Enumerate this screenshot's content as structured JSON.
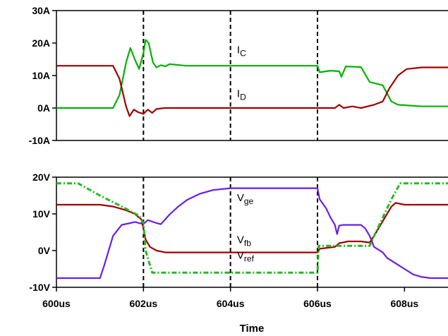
{
  "chart_data": [
    {
      "type": "line",
      "x_unit": "us",
      "xlim": [
        600,
        609
      ],
      "ylim": [
        -10,
        30
      ],
      "y_ticks": [
        "30A",
        "20A",
        "10A",
        "0A",
        "-10A"
      ],
      "y_tick_values": [
        30,
        20,
        10,
        0,
        -10
      ],
      "markers_x": [
        602,
        604,
        606
      ],
      "annotations": [
        {
          "series_index": 0,
          "main": "I",
          "sub": "C",
          "x": 604.15,
          "y": 16.8
        },
        {
          "series_index": 1,
          "main": "I",
          "sub": "D",
          "x": 604.15,
          "y": 3.4
        }
      ],
      "series": [
        {
          "color": "#00b400",
          "points": [
            [
              600,
              0
            ],
            [
              601.3,
              0
            ],
            [
              601.45,
              4
            ],
            [
              601.6,
              14
            ],
            [
              601.7,
              18.5
            ],
            [
              601.8,
              15
            ],
            [
              601.9,
              12
            ],
            [
              602.0,
              17
            ],
            [
              602.05,
              21
            ],
            [
              602.12,
              20
            ],
            [
              602.22,
              14
            ],
            [
              602.3,
              12.5
            ],
            [
              602.4,
              13.2
            ],
            [
              602.5,
              12.8
            ],
            [
              602.6,
              13.5
            ],
            [
              603.0,
              13
            ],
            [
              606.0,
              13
            ],
            [
              606.05,
              11
            ],
            [
              606.3,
              11.5
            ],
            [
              606.5,
              11.3
            ],
            [
              606.55,
              9.6
            ],
            [
              606.65,
              12.8
            ],
            [
              607.0,
              12.6
            ],
            [
              607.2,
              8
            ],
            [
              607.5,
              7
            ],
            [
              607.7,
              2
            ],
            [
              607.85,
              1
            ],
            [
              608.4,
              0.5
            ],
            [
              609,
              0.5
            ]
          ]
        },
        {
          "color": "#a00000",
          "points": [
            [
              600,
              13
            ],
            [
              601.3,
              13
            ],
            [
              601.45,
              9
            ],
            [
              601.6,
              0.5
            ],
            [
              601.68,
              -2.5
            ],
            [
              601.78,
              -0.5
            ],
            [
              601.88,
              -1.3
            ],
            [
              602.0,
              -1.8
            ],
            [
              602.1,
              -0.5
            ],
            [
              602.2,
              -1.5
            ],
            [
              602.3,
              -0.3
            ],
            [
              602.5,
              0
            ],
            [
              606.0,
              0
            ],
            [
              606.4,
              0
            ],
            [
              606.5,
              1
            ],
            [
              606.6,
              0
            ],
            [
              606.8,
              0.5
            ],
            [
              607.0,
              0
            ],
            [
              607.3,
              1
            ],
            [
              607.5,
              2
            ],
            [
              607.65,
              6
            ],
            [
              607.85,
              10
            ],
            [
              608.05,
              12
            ],
            [
              608.4,
              12.5
            ],
            [
              609,
              12.5
            ]
          ]
        }
      ]
    },
    {
      "type": "line",
      "title": "",
      "xlabel": "Time",
      "x_unit": "us",
      "xlim": [
        600,
        609
      ],
      "x_ticks": [
        "600us",
        "602us",
        "604us",
        "606us",
        "608us"
      ],
      "x_tick_values": [
        600,
        602,
        604,
        606,
        608
      ],
      "ylim": [
        -10,
        20
      ],
      "y_ticks": [
        "20V",
        "10V",
        "0V",
        "-10V"
      ],
      "y_tick_values": [
        20,
        10,
        0,
        -10
      ],
      "markers_x": [
        602,
        604,
        606
      ],
      "annotations": [
        {
          "series_index": 0,
          "main": "V",
          "sub": "ge",
          "x": 604.15,
          "y": 13.5
        },
        {
          "series_index": 1,
          "main": "V",
          "sub": "fb",
          "x": 604.15,
          "y": 2.0
        },
        {
          "series_index": 2,
          "main": "V",
          "sub": "ref",
          "x": 604.15,
          "y": -2.2
        }
      ],
      "series": [
        {
          "color": "#6a1ee8",
          "points": [
            [
              600,
              -7.5
            ],
            [
              601,
              -7.5
            ],
            [
              601.1,
              -4
            ],
            [
              601.3,
              4
            ],
            [
              601.5,
              7
            ],
            [
              601.7,
              7.5
            ],
            [
              601.8,
              7.8
            ],
            [
              602.0,
              7.2
            ],
            [
              602.1,
              8.3
            ],
            [
              602.3,
              7.5
            ],
            [
              602.4,
              7.2
            ],
            [
              602.6,
              9.8
            ],
            [
              602.8,
              12
            ],
            [
              603.0,
              13.8
            ],
            [
              603.3,
              15.5
            ],
            [
              603.6,
              16.5
            ],
            [
              604.0,
              17
            ],
            [
              606.0,
              17
            ],
            [
              606.05,
              14
            ],
            [
              606.2,
              11.5
            ],
            [
              606.3,
              9
            ],
            [
              606.4,
              7
            ],
            [
              606.45,
              4.5
            ],
            [
              606.5,
              6.8
            ],
            [
              606.6,
              7
            ],
            [
              607.0,
              7
            ],
            [
              607.1,
              6
            ],
            [
              607.2,
              4
            ],
            [
              607.3,
              1
            ],
            [
              607.5,
              -0.5
            ],
            [
              607.6,
              -2
            ],
            [
              607.8,
              -3.5
            ],
            [
              608.0,
              -5
            ],
            [
              608.2,
              -6.5
            ],
            [
              608.4,
              -7.2
            ],
            [
              608.6,
              -7.5
            ],
            [
              609,
              -7.5
            ]
          ]
        },
        {
          "color": "#a00000",
          "points": [
            [
              600,
              12.5
            ],
            [
              601,
              12.5
            ],
            [
              601.3,
              12
            ],
            [
              601.6,
              11
            ],
            [
              601.8,
              10
            ],
            [
              601.95,
              8.5
            ],
            [
              602.0,
              6
            ],
            [
              602.05,
              3
            ],
            [
              602.15,
              1
            ],
            [
              602.3,
              0
            ],
            [
              602.5,
              -0.5
            ],
            [
              606.0,
              -0.5
            ],
            [
              606.05,
              0.5
            ],
            [
              606.4,
              1
            ],
            [
              606.5,
              2
            ],
            [
              606.7,
              2.5
            ],
            [
              607.0,
              2.5
            ],
            [
              607.2,
              2.2
            ],
            [
              607.3,
              4
            ],
            [
              607.5,
              8
            ],
            [
              607.7,
              12
            ],
            [
              607.8,
              13
            ],
            [
              608.0,
              12.5
            ],
            [
              609,
              12.5
            ]
          ]
        },
        {
          "color": "#22bb22",
          "dashed": true,
          "points": [
            [
              600,
              18.3
            ],
            [
              600.5,
              18.3
            ],
            [
              601.0,
              15
            ],
            [
              601.5,
              12
            ],
            [
              601.9,
              9.5
            ],
            [
              602.0,
              7.5
            ],
            [
              602.05,
              0
            ],
            [
              602.2,
              -6
            ],
            [
              606.0,
              -6
            ],
            [
              606.03,
              1.3
            ],
            [
              607.2,
              1.3
            ],
            [
              607.3,
              4
            ],
            [
              607.5,
              9
            ],
            [
              607.7,
              14
            ],
            [
              607.9,
              18.3
            ],
            [
              609,
              18.3
            ]
          ]
        }
      ]
    }
  ]
}
